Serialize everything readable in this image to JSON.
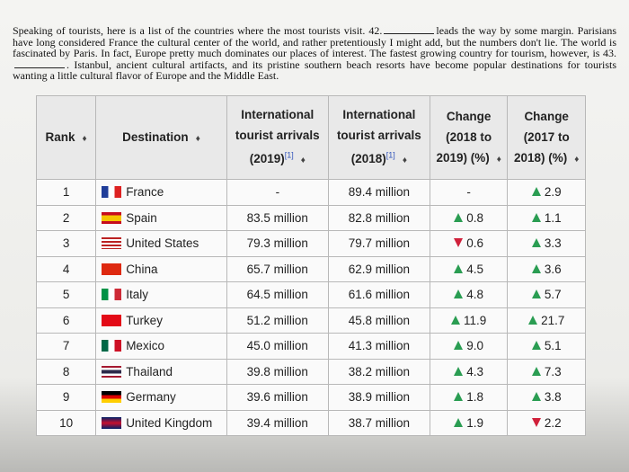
{
  "paragraph": [
    "Speaking of tourists, here is a list of the countries where the most tourists visit. 42.",
    "leads the way by some margin. Parisians have long considered France the cultural center of the world, and rather pretentiously I might add, but the numbers don't lie. The world is fascinated by Paris. In fact, Europe pretty much dominates our places of interest. The fastest growing country for tourism, however, is 43.",
    ". Istanbul, ancient cultural artifacts, and its pristine southern beach resorts have become popular destinations for tourists wanting a little cultural flavor of Europe and the Middle East."
  ],
  "table": {
    "header": [
      {
        "text": "Rank"
      },
      {
        "text": "Destination"
      },
      {
        "text": "International tourist arrivals (2019)",
        "ref": "[1]"
      },
      {
        "text": "International tourist arrivals (2018)",
        "ref": "[1]"
      },
      {
        "text": "Change (2018 to 2019) (%)"
      },
      {
        "text": "Change (2017 to 2018) (%)"
      }
    ],
    "rows": [
      {
        "rank": "1",
        "destination": "France",
        "arrivals_2019": "-",
        "arrivals_2018": "89.4 million",
        "change_2019": {
          "text": "-"
        },
        "change_2018": {
          "trend": "up",
          "text": "2.9"
        }
      },
      {
        "rank": "2",
        "destination": "Spain",
        "arrivals_2019": "83.5 million",
        "arrivals_2018": "82.8 million",
        "change_2019": {
          "trend": "up",
          "text": "0.8"
        },
        "change_2018": {
          "trend": "up",
          "text": "1.1"
        }
      },
      {
        "rank": "3",
        "destination": "United States",
        "arrivals_2019": "79.3 million",
        "arrivals_2018": "79.7 million",
        "change_2019": {
          "trend": "down",
          "text": "0.6"
        },
        "change_2018": {
          "trend": "up",
          "text": "3.3"
        }
      },
      {
        "rank": "4",
        "destination": "China",
        "arrivals_2019": "65.7 million",
        "arrivals_2018": "62.9 million",
        "change_2019": {
          "trend": "up",
          "text": "4.5"
        },
        "change_2018": {
          "trend": "up",
          "text": "3.6"
        }
      },
      {
        "rank": "5",
        "destination": "Italy",
        "arrivals_2019": "64.5 million",
        "arrivals_2018": "61.6 million",
        "change_2019": {
          "trend": "up",
          "text": "4.8"
        },
        "change_2018": {
          "trend": "up",
          "text": "5.7"
        }
      },
      {
        "rank": "6",
        "destination": "Turkey",
        "arrivals_2019": "51.2 million",
        "arrivals_2018": "45.8 million",
        "change_2019": {
          "trend": "up",
          "text": "11.9"
        },
        "change_2018": {
          "trend": "up",
          "text": "21.7"
        }
      },
      {
        "rank": "7",
        "destination": "Mexico",
        "arrivals_2019": "45.0 million",
        "arrivals_2018": "41.3 million",
        "change_2019": {
          "trend": "up",
          "text": "9.0"
        },
        "change_2018": {
          "trend": "up",
          "text": "5.1"
        }
      },
      {
        "rank": "8",
        "destination": "Thailand",
        "arrivals_2019": "39.8 million",
        "arrivals_2018": "38.2 million",
        "change_2019": {
          "trend": "up",
          "text": "4.3"
        },
        "change_2018": {
          "trend": "up",
          "text": "7.3"
        }
      },
      {
        "rank": "9",
        "destination": "Germany",
        "arrivals_2019": "39.6 million",
        "arrivals_2018": "38.9 million",
        "change_2019": {
          "trend": "up",
          "text": "1.8"
        },
        "change_2018": {
          "trend": "up",
          "text": "3.8"
        }
      },
      {
        "rank": "10",
        "destination": "United Kingdom",
        "arrivals_2019": "39.4 million",
        "arrivals_2018": "38.7 million",
        "change_2019": {
          "trend": "up",
          "text": "1.9"
        },
        "change_2018": {
          "trend": "down",
          "text": "2.2"
        }
      }
    ]
  }
}
